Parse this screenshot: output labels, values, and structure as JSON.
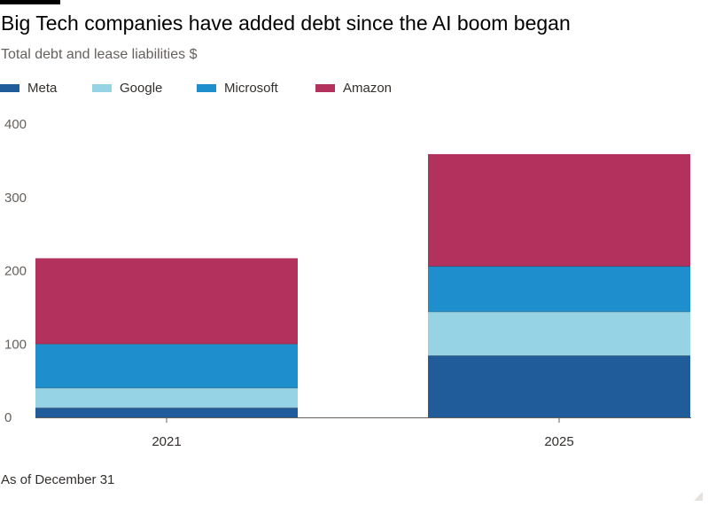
{
  "chart_data": {
    "type": "bar",
    "stacked": true,
    "title": "Big Tech companies have added debt since the AI boom began",
    "subtitle": "Total debt and lease liabilities $",
    "categories": [
      "2021",
      "2025"
    ],
    "series": [
      {
        "name": "Meta",
        "values": [
          13,
          84
        ],
        "color": "#1f5c99"
      },
      {
        "name": "Google",
        "values": [
          27,
          60
        ],
        "color": "#96d4e5"
      },
      {
        "name": "Microsoft",
        "values": [
          60,
          62
        ],
        "color": "#1e8fcc"
      },
      {
        "name": "Amazon",
        "values": [
          117,
          153
        ],
        "color": "#b3325d"
      }
    ],
    "ylim": [
      0,
      400
    ],
    "yticks": [
      "0",
      "100",
      "200",
      "300",
      "400"
    ],
    "xlabel": "",
    "ylabel": "",
    "legend_position": "top-left",
    "grid": false,
    "footnote": "As of December 31"
  }
}
